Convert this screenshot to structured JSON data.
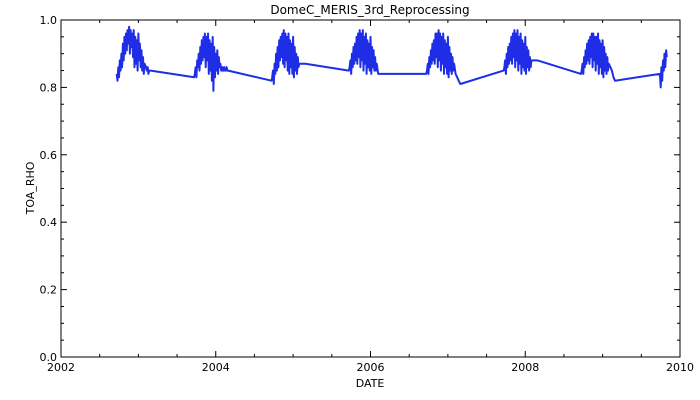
{
  "chart_data": {
    "type": "line",
    "title": "DomeC_MERIS_3rd_Reprocessing",
    "xlabel": "DATE",
    "ylabel": "TOA_RHO",
    "xlim": [
      2002,
      2010
    ],
    "ylim": [
      0.0,
      1.0
    ],
    "xticks": [
      "2002",
      "2004",
      "2006",
      "2008",
      "2010"
    ],
    "yticks": [
      "0.0",
      "0.2",
      "0.4",
      "0.6",
      "0.8",
      "1.0"
    ],
    "series_color": "#1f2ee6",
    "series": [
      {
        "x": [
          2002.72,
          2002.73,
          2002.74,
          2002.75,
          2002.76,
          2002.77,
          2002.78,
          2002.79,
          2002.8,
          2002.81,
          2002.82,
          2002.83,
          2002.84,
          2002.85,
          2002.86,
          2002.87,
          2002.88,
          2002.89,
          2002.9,
          2002.91,
          2002.92,
          2002.93,
          2002.94,
          2002.95,
          2002.96,
          2002.97,
          2002.98,
          2002.99,
          2003.0,
          2003.01,
          2003.02,
          2003.03,
          2003.04,
          2003.05,
          2003.06,
          2003.07,
          2003.08,
          2003.1,
          2003.11,
          2003.12,
          2003.13,
          2003.14,
          2003.15,
          2003.16,
          2003.72,
          2003.73,
          2003.74,
          2003.75,
          2003.76,
          2003.77,
          2003.78,
          2003.79,
          2003.8,
          2003.81,
          2003.82,
          2003.83,
          2003.84,
          2003.85,
          2003.86,
          2003.87,
          2003.88,
          2003.89,
          2003.9,
          2003.91,
          2003.92,
          2003.93,
          2003.94,
          2003.95,
          2003.96,
          2003.97,
          2003.98,
          2003.99,
          2004.0,
          2004.01,
          2004.02,
          2004.03,
          2004.04,
          2004.05,
          2004.06,
          2004.07,
          2004.08,
          2004.09,
          2004.1,
          2004.11,
          2004.12,
          2004.13,
          2004.14,
          2004.15,
          2004.16,
          2004.72,
          2004.73,
          2004.74,
          2004.75,
          2004.76,
          2004.77,
          2004.78,
          2004.79,
          2004.8,
          2004.81,
          2004.82,
          2004.83,
          2004.84,
          2004.85,
          2004.86,
          2004.87,
          2004.88,
          2004.89,
          2004.9,
          2004.91,
          2004.92,
          2004.93,
          2004.94,
          2004.95,
          2004.96,
          2004.97,
          2004.98,
          2004.99,
          2005.0,
          2005.01,
          2005.02,
          2005.03,
          2005.04,
          2005.05,
          2005.06,
          2005.07,
          2005.08,
          2005.1,
          2005.12,
          2005.14,
          2005.16,
          2005.72,
          2005.73,
          2005.74,
          2005.75,
          2005.76,
          2005.77,
          2005.78,
          2005.79,
          2005.8,
          2005.81,
          2005.82,
          2005.83,
          2005.84,
          2005.85,
          2005.86,
          2005.87,
          2005.88,
          2005.89,
          2005.9,
          2005.91,
          2005.92,
          2005.93,
          2005.94,
          2005.95,
          2005.96,
          2005.97,
          2005.98,
          2005.99,
          2006.0,
          2006.01,
          2006.02,
          2006.03,
          2006.04,
          2006.05,
          2006.06,
          2006.07,
          2006.08,
          2006.1,
          2006.12,
          2006.14,
          2006.16,
          2006.72,
          2006.73,
          2006.74,
          2006.75,
          2006.76,
          2006.77,
          2006.78,
          2006.79,
          2006.8,
          2006.81,
          2006.82,
          2006.83,
          2006.84,
          2006.85,
          2006.86,
          2006.87,
          2006.88,
          2006.89,
          2006.9,
          2006.91,
          2006.92,
          2006.93,
          2006.94,
          2006.95,
          2006.96,
          2006.97,
          2006.98,
          2006.99,
          2007.0,
          2007.01,
          2007.02,
          2007.03,
          2007.04,
          2007.05,
          2007.06,
          2007.07,
          2007.08,
          2007.1,
          2007.12,
          2007.14,
          2007.16,
          2007.72,
          2007.73,
          2007.74,
          2007.75,
          2007.76,
          2007.77,
          2007.78,
          2007.79,
          2007.8,
          2007.81,
          2007.82,
          2007.83,
          2007.84,
          2007.85,
          2007.86,
          2007.87,
          2007.88,
          2007.89,
          2007.9,
          2007.91,
          2007.92,
          2007.93,
          2007.94,
          2007.95,
          2007.96,
          2007.97,
          2007.98,
          2007.99,
          2008.0,
          2008.01,
          2008.02,
          2008.03,
          2008.04,
          2008.05,
          2008.06,
          2008.07,
          2008.08,
          2008.1,
          2008.12,
          2008.14,
          2008.16,
          2008.72,
          2008.73,
          2008.74,
          2008.75,
          2008.76,
          2008.77,
          2008.78,
          2008.79,
          2008.8,
          2008.81,
          2008.82,
          2008.83,
          2008.84,
          2008.85,
          2008.86,
          2008.87,
          2008.88,
          2008.89,
          2008.9,
          2008.91,
          2008.92,
          2008.93,
          2008.94,
          2008.95,
          2008.96,
          2008.97,
          2008.98,
          2008.99,
          2009.0,
          2009.01,
          2009.02,
          2009.03,
          2009.04,
          2009.05,
          2009.06,
          2009.07,
          2009.08,
          2009.1,
          2009.12,
          2009.14,
          2009.16,
          2009.74,
          2009.75,
          2009.76,
          2009.77,
          2009.78,
          2009.79,
          2009.8,
          2009.81,
          2009.82,
          2009.83
        ],
        "y": [
          0.84,
          0.82,
          0.86,
          0.83,
          0.88,
          0.85,
          0.9,
          0.86,
          0.93,
          0.88,
          0.95,
          0.9,
          0.96,
          0.91,
          0.97,
          0.93,
          0.98,
          0.9,
          0.97,
          0.92,
          0.96,
          0.89,
          0.97,
          0.86,
          0.95,
          0.87,
          0.94,
          0.85,
          0.96,
          0.88,
          0.93,
          0.86,
          0.91,
          0.85,
          0.89,
          0.84,
          0.87,
          0.86,
          0.85,
          0.86,
          0.84,
          0.85,
          0.85,
          0.85,
          0.83,
          0.84,
          0.86,
          0.83,
          0.88,
          0.86,
          0.9,
          0.85,
          0.92,
          0.87,
          0.94,
          0.88,
          0.95,
          0.89,
          0.96,
          0.86,
          0.95,
          0.88,
          0.96,
          0.84,
          0.94,
          0.85,
          0.93,
          0.82,
          0.95,
          0.79,
          0.92,
          0.83,
          0.9,
          0.85,
          0.91,
          0.84,
          0.89,
          0.86,
          0.87,
          0.85,
          0.85,
          0.86,
          0.85,
          0.86,
          0.85,
          0.85,
          0.86,
          0.85,
          0.85,
          0.82,
          0.83,
          0.85,
          0.81,
          0.87,
          0.84,
          0.9,
          0.85,
          0.92,
          0.86,
          0.94,
          0.88,
          0.95,
          0.89,
          0.96,
          0.87,
          0.97,
          0.86,
          0.96,
          0.88,
          0.95,
          0.85,
          0.96,
          0.84,
          0.94,
          0.86,
          0.93,
          0.84,
          0.95,
          0.83,
          0.92,
          0.85,
          0.9,
          0.84,
          0.89,
          0.86,
          0.87,
          0.87,
          0.87,
          0.87,
          0.87,
          0.85,
          0.86,
          0.88,
          0.84,
          0.9,
          0.86,
          0.92,
          0.87,
          0.93,
          0.88,
          0.95,
          0.87,
          0.96,
          0.89,
          0.97,
          0.86,
          0.96,
          0.88,
          0.97,
          0.85,
          0.95,
          0.87,
          0.96,
          0.84,
          0.94,
          0.86,
          0.93,
          0.85,
          0.95,
          0.84,
          0.92,
          0.86,
          0.91,
          0.85,
          0.89,
          0.85,
          0.87,
          0.84,
          0.84,
          0.84,
          0.84,
          0.84,
          0.85,
          0.87,
          0.84,
          0.89,
          0.86,
          0.91,
          0.87,
          0.93,
          0.88,
          0.94,
          0.87,
          0.96,
          0.89,
          0.96,
          0.86,
          0.97,
          0.88,
          0.96,
          0.85,
          0.95,
          0.87,
          0.96,
          0.84,
          0.94,
          0.86,
          0.93,
          0.84,
          0.95,
          0.83,
          0.92,
          0.85,
          0.9,
          0.84,
          0.89,
          0.85,
          0.87,
          0.84,
          0.83,
          0.82,
          0.81,
          0.85,
          0.86,
          0.88,
          0.84,
          0.9,
          0.86,
          0.92,
          0.87,
          0.93,
          0.88,
          0.95,
          0.87,
          0.96,
          0.89,
          0.97,
          0.86,
          0.96,
          0.88,
          0.97,
          0.85,
          0.95,
          0.87,
          0.96,
          0.84,
          0.94,
          0.86,
          0.93,
          0.85,
          0.95,
          0.84,
          0.92,
          0.86,
          0.91,
          0.85,
          0.89,
          0.86,
          0.88,
          0.88,
          0.88,
          0.88,
          0.88,
          0.84,
          0.85,
          0.87,
          0.84,
          0.89,
          0.86,
          0.91,
          0.87,
          0.93,
          0.88,
          0.94,
          0.87,
          0.95,
          0.89,
          0.96,
          0.86,
          0.96,
          0.88,
          0.95,
          0.85,
          0.95,
          0.87,
          0.96,
          0.84,
          0.94,
          0.86,
          0.93,
          0.84,
          0.94,
          0.83,
          0.92,
          0.85,
          0.9,
          0.84,
          0.89,
          0.85,
          0.87,
          0.86,
          0.85,
          0.83,
          0.82,
          0.84,
          0.8,
          0.86,
          0.82,
          0.88,
          0.85,
          0.9,
          0.86,
          0.91,
          0.89
        ]
      }
    ]
  }
}
